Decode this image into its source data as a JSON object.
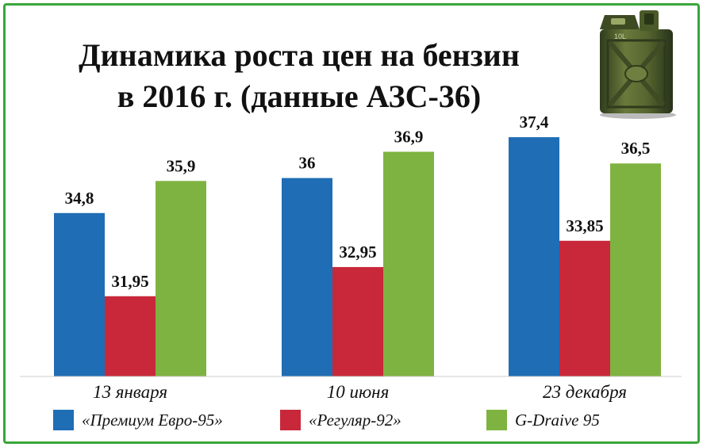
{
  "chart_data": {
    "type": "bar",
    "title_line1": "Динамика роста цен на бензин",
    "title_line2": "в 2016 г. (данные АЗС-36)",
    "categories": [
      "13 января",
      "10 июня",
      "23 декабря"
    ],
    "series": [
      {
        "name": "«Премиум Евро-95»",
        "values": [
          34.8,
          36,
          37.4
        ],
        "labels": [
          "34,8",
          "36",
          "37,4"
        ],
        "color": "#1f6db4"
      },
      {
        "name": "«Регуляр-92»",
        "values": [
          31.95,
          32.95,
          33.85
        ],
        "labels": [
          "31,95",
          "32,95",
          "33,85"
        ],
        "color": "#c8283a"
      },
      {
        "name": "G-Draive 95",
        "values": [
          35.9,
          36.9,
          36.5
        ],
        "labels": [
          "35,9",
          "36,9",
          "36,5"
        ],
        "color": "#7fb341"
      }
    ],
    "xlabel": "",
    "ylabel": "",
    "ylim": [
      29.2,
      38
    ],
    "grid": false,
    "legend": "bottom",
    "decoration": "canister-icon"
  }
}
